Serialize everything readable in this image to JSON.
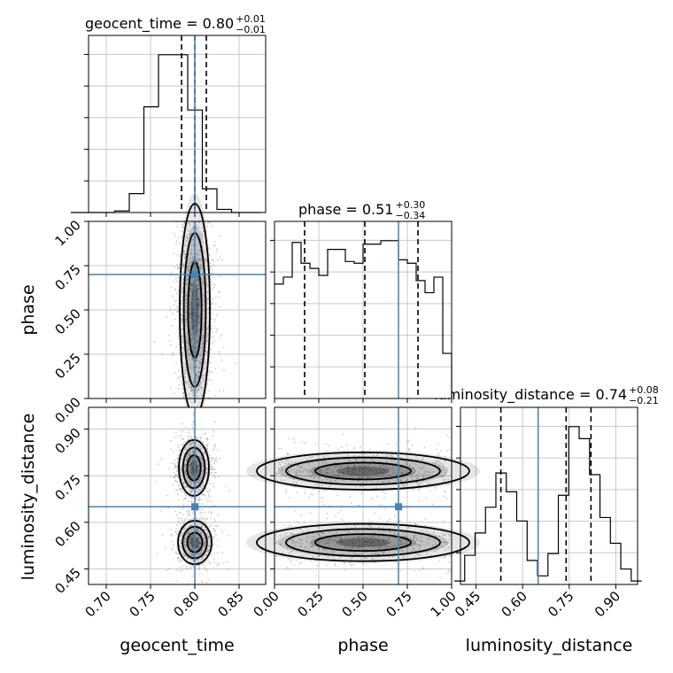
{
  "chart_data": {
    "type": "corner",
    "truth_color": "#4682b4",
    "params": [
      "geocent_time",
      "phase",
      "luminosity_distance"
    ],
    "truths": [
      0.8,
      0.7,
      0.65
    ],
    "titles": [
      {
        "label": "geocent_time = 0.80",
        "sup": "+0.01",
        "sub": "−0.01"
      },
      {
        "label": "phase = 0.51",
        "sup": "+0.30",
        "sub": "−0.34"
      },
      {
        "label": "luminosity_distance = 0.74",
        "sup": "+0.08",
        "sub": "−0.21"
      }
    ],
    "quantiles": [
      [
        0.785,
        0.8,
        0.813
      ],
      [
        0.17,
        0.51,
        0.81
      ],
      [
        0.53,
        0.74,
        0.82
      ]
    ],
    "ticks": {
      "geocent_time": [
        "0.70",
        "0.75",
        "0.80",
        "0.85"
      ],
      "phase": [
        "0.00",
        "0.25",
        "0.50",
        "0.75",
        "1.00"
      ],
      "luminosity_distance": [
        "0.45",
        "0.60",
        "0.75",
        "0.90"
      ]
    },
    "histograms": {
      "geocent_time": {
        "edges": [
          0.66,
          0.6765,
          0.693,
          0.7095,
          0.726,
          0.7425,
          0.759,
          0.7755,
          0.792,
          0.8085,
          0.825,
          0.8415,
          0.858,
          0.8745
        ],
        "counts": [
          0,
          0,
          0,
          1,
          12,
          67,
          100,
          100,
          65,
          15,
          2,
          0,
          0
        ]
      },
      "phase": {
        "edges": [
          0.0,
          0.05,
          0.1,
          0.15,
          0.2,
          0.25,
          0.3,
          0.35,
          0.4,
          0.45,
          0.5,
          0.55,
          0.6,
          0.65,
          0.7,
          0.75,
          0.8,
          0.85,
          0.9,
          0.95,
          1.0
        ],
        "counts": [
          66,
          70,
          90,
          78,
          75,
          71,
          86,
          86,
          79,
          78,
          89,
          89,
          91,
          91,
          80,
          78,
          68,
          61,
          70,
          26,
          0
        ]
      },
      "luminosity_distance": {
        "edges": [
          0.38,
          0.4135,
          0.447,
          0.4805,
          0.514,
          0.5475,
          0.581,
          0.6145,
          0.648,
          0.6815,
          0.715,
          0.7485,
          0.782,
          0.8155,
          0.849,
          0.8825,
          0.916,
          0.9495,
          0.983
        ],
        "counts": [
          2,
          17,
          30,
          45,
          65,
          54,
          37,
          14,
          5,
          18,
          52,
          92,
          85,
          64,
          39,
          24,
          9,
          2
        ]
      }
    },
    "pairs": [
      {
        "x": "geocent_time",
        "y": "phase"
      },
      {
        "x": "geocent_time",
        "y": "luminosity_distance"
      },
      {
        "x": "phase",
        "y": "luminosity_distance"
      }
    ]
  }
}
